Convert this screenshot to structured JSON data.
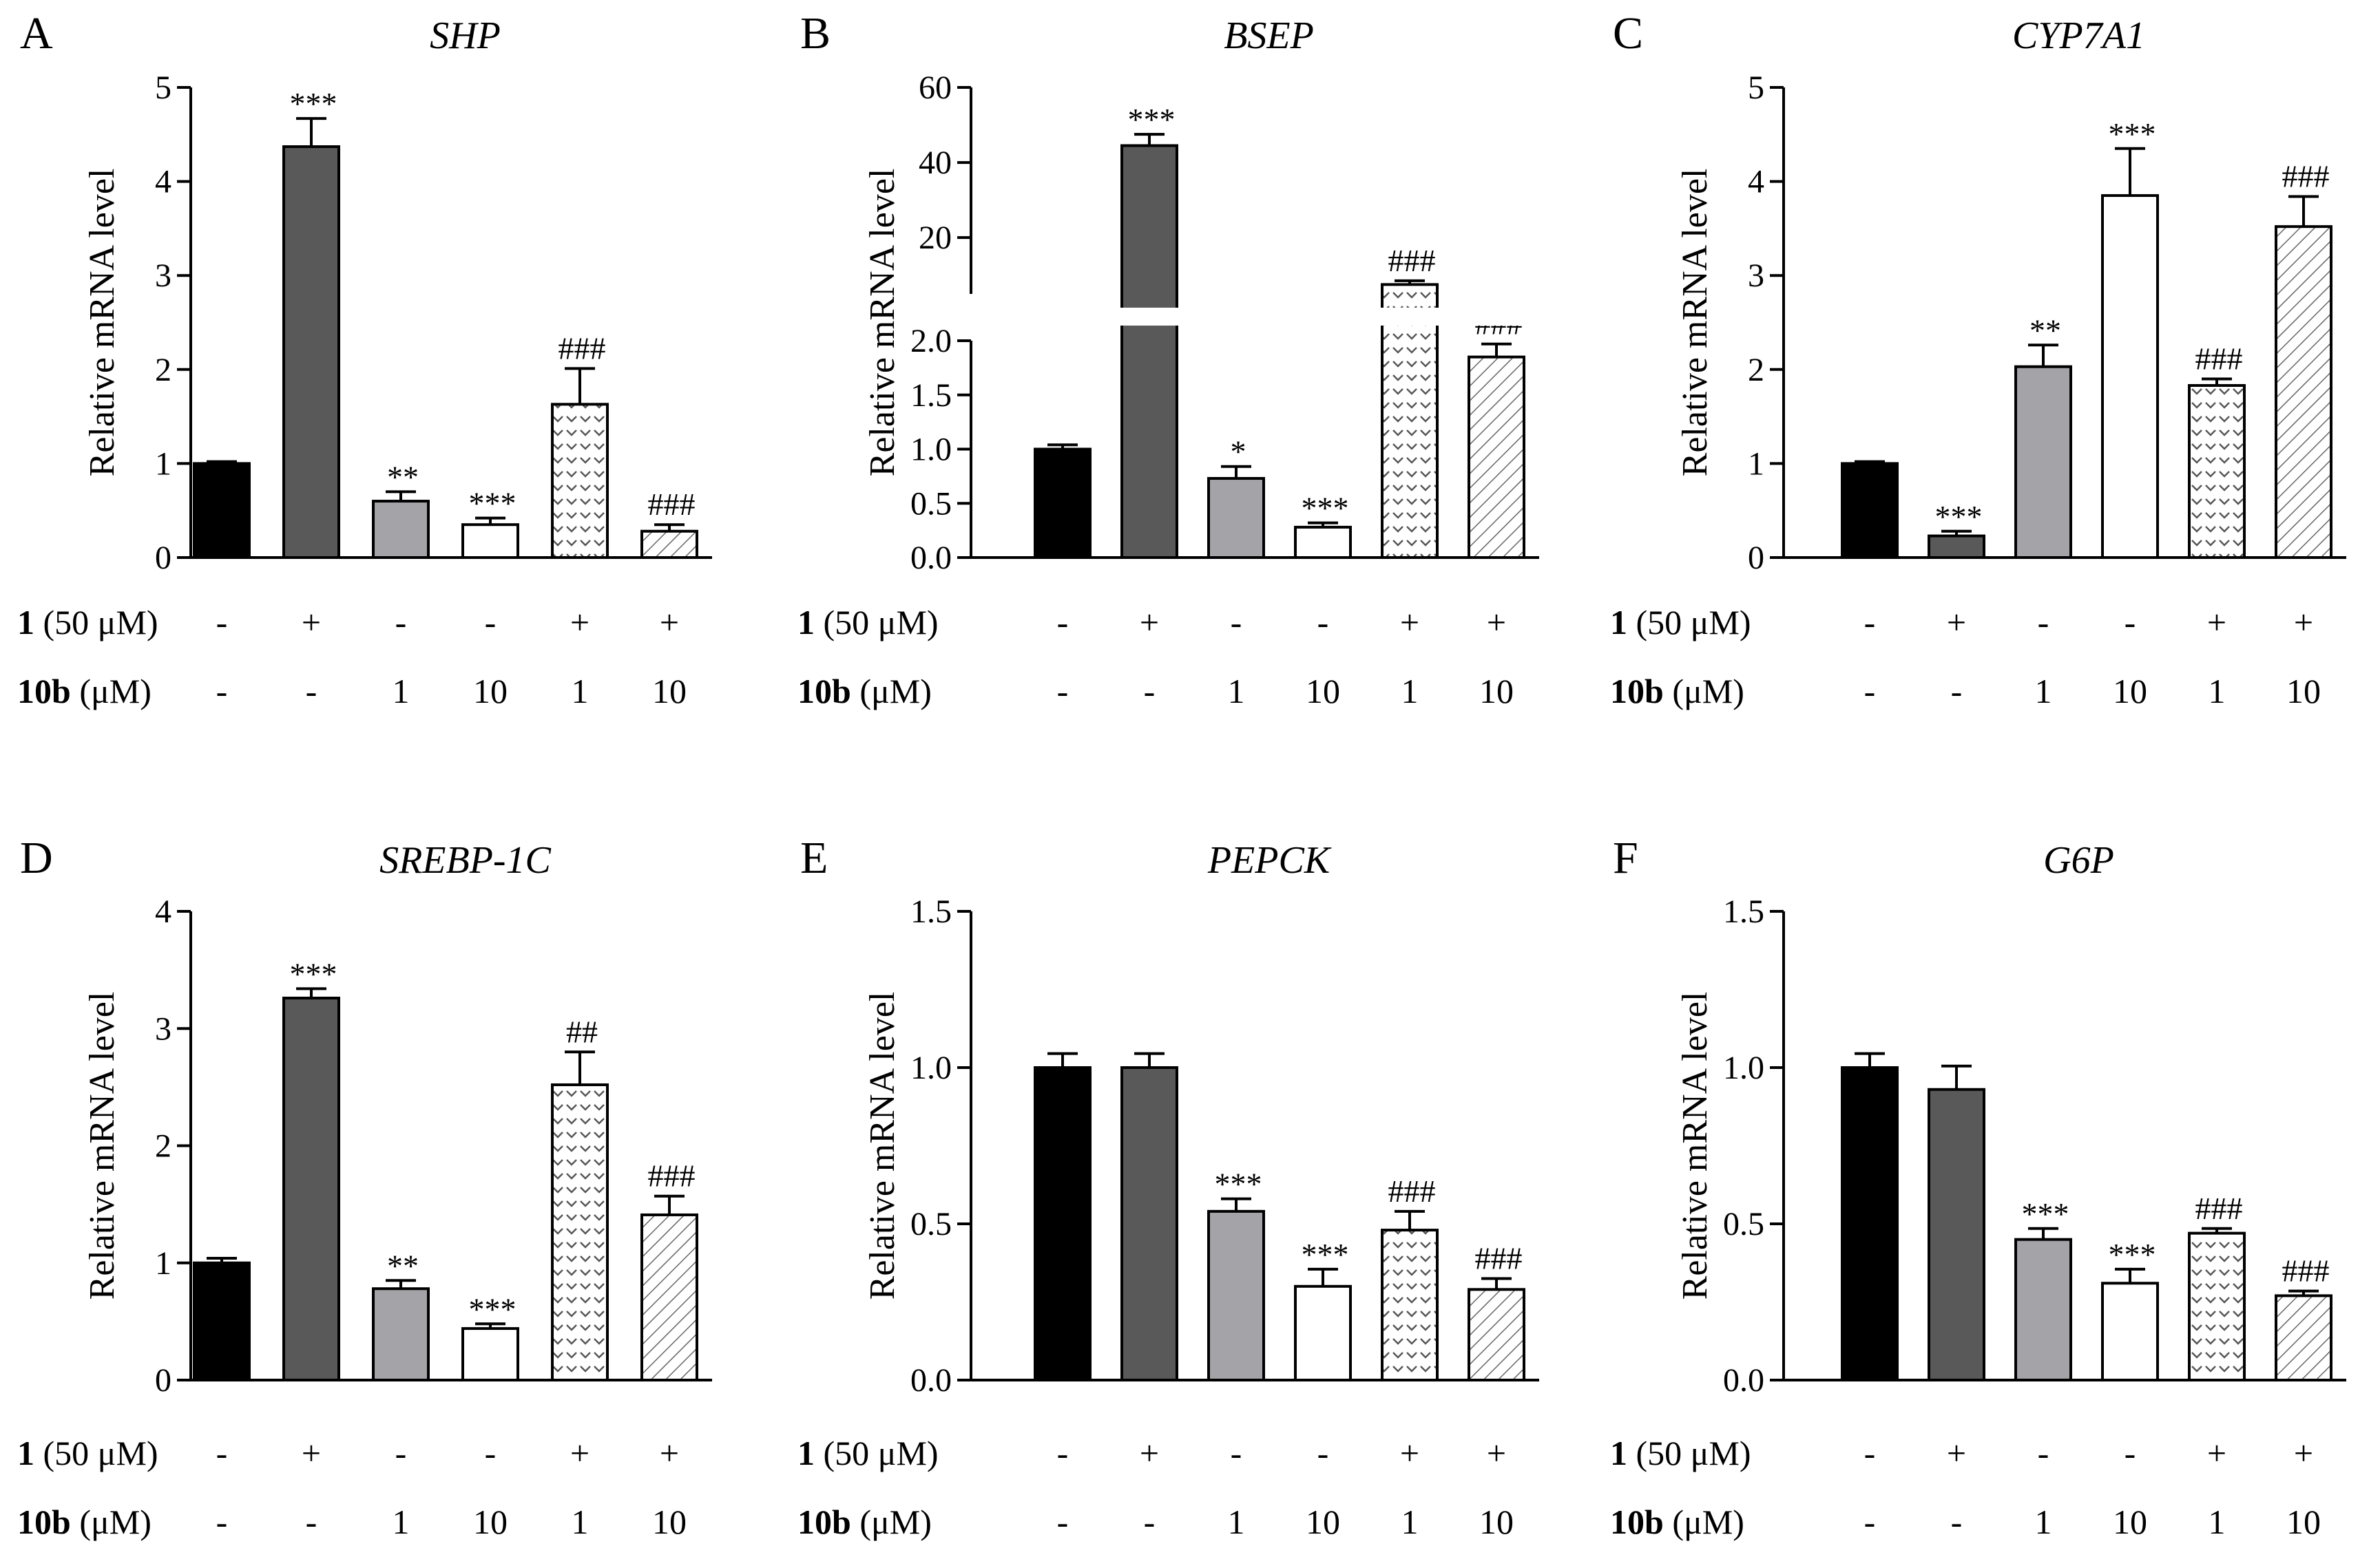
{
  "figure": {
    "treatment_rows": [
      {
        "bold": "1",
        "unit": " (50 μM)",
        "values": [
          "-",
          "+",
          "-",
          "-",
          "+",
          "+"
        ]
      },
      {
        "bold": "10b",
        "unit": " (μM)",
        "values": [
          "-",
          "-",
          "1",
          "10",
          "1",
          "10"
        ]
      }
    ],
    "bar_styles": [
      {
        "fill": "#000000",
        "pattern": "solid"
      },
      {
        "fill": "#595959",
        "pattern": "solid"
      },
      {
        "fill": "#a3a3a8",
        "pattern": "solid"
      },
      {
        "fill": "#ffffff",
        "pattern": "solid"
      },
      {
        "fill": "#ffffff",
        "pattern": "chevron"
      },
      {
        "fill": "#ffffff",
        "pattern": "diagonal"
      }
    ]
  },
  "chart_data": [
    {
      "panel": "A",
      "type": "bar",
      "title": "SHP",
      "ylabel": "Relative mRNA level",
      "ylim": [
        0,
        5
      ],
      "yticks": [
        "0",
        "1",
        "2",
        "3",
        "4",
        "5"
      ],
      "values": [
        1.0,
        4.37,
        0.6,
        0.35,
        1.63,
        0.28
      ],
      "errors": [
        0.02,
        0.3,
        0.1,
        0.07,
        0.38,
        0.07
      ],
      "significance": [
        "",
        "***",
        "**",
        "***",
        "###",
        "###"
      ]
    },
    {
      "panel": "B",
      "type": "bar",
      "title": "BSEP",
      "ylabel": "Relative mRNA level",
      "broken_axis": true,
      "lower_ylim": [
        0,
        2.0
      ],
      "lower_yticks": [
        "0.0",
        "0.5",
        "1.0",
        "1.5",
        "2.0"
      ],
      "upper_ylim": [
        5,
        60
      ],
      "upper_yticks": [
        "20",
        "40",
        "60"
      ],
      "values": [
        1.0,
        44.5,
        0.73,
        0.28,
        7.5,
        1.85
      ],
      "errors": [
        0.04,
        3.0,
        0.11,
        0.04,
        1.0,
        0.12
      ],
      "significance": [
        "",
        "***",
        "*",
        "***",
        "###",
        "###"
      ]
    },
    {
      "panel": "C",
      "type": "bar",
      "title": "CYP7A1",
      "ylabel": "Relative mRNA level",
      "ylim": [
        0,
        5
      ],
      "yticks": [
        "0",
        "1",
        "2",
        "3",
        "4",
        "5"
      ],
      "values": [
        1.0,
        0.23,
        2.03,
        3.85,
        1.83,
        3.52
      ],
      "errors": [
        0.02,
        0.05,
        0.23,
        0.5,
        0.07,
        0.32
      ],
      "significance": [
        "",
        "***",
        "**",
        "***",
        "###",
        "###"
      ]
    },
    {
      "panel": "D",
      "type": "bar",
      "title": "SREBP-1C",
      "ylabel": "Relative mRNA level",
      "ylim": [
        0,
        4
      ],
      "yticks": [
        "0",
        "1",
        "2",
        "3",
        "4"
      ],
      "values": [
        1.0,
        3.26,
        0.78,
        0.44,
        2.52,
        1.41
      ],
      "errors": [
        0.04,
        0.08,
        0.07,
        0.04,
        0.28,
        0.16
      ],
      "significance": [
        "",
        "***",
        "**",
        "***",
        "##",
        "###"
      ]
    },
    {
      "panel": "E",
      "type": "bar",
      "title": "PEPCK",
      "ylabel": "Relative mRNA level",
      "ylim": [
        0,
        1.5
      ],
      "yticks": [
        "0.0",
        "0.5",
        "1.0",
        "1.5"
      ],
      "values": [
        1.0,
        1.0,
        0.54,
        0.3,
        0.48,
        0.29
      ],
      "errors": [
        0.045,
        0.045,
        0.04,
        0.055,
        0.06,
        0.035
      ],
      "significance": [
        "",
        "",
        "***",
        "***",
        "###",
        "###"
      ]
    },
    {
      "panel": "F",
      "type": "bar",
      "title": "G6P",
      "ylabel": "Relative mRNA level",
      "ylim": [
        0,
        1.5
      ],
      "yticks": [
        "0.0",
        "0.5",
        "1.0",
        "1.5"
      ],
      "values": [
        1.0,
        0.93,
        0.45,
        0.31,
        0.47,
        0.27
      ],
      "errors": [
        0.045,
        0.075,
        0.035,
        0.045,
        0.015,
        0.015
      ],
      "significance": [
        "",
        "",
        "***",
        "***",
        "###",
        "###"
      ]
    }
  ]
}
